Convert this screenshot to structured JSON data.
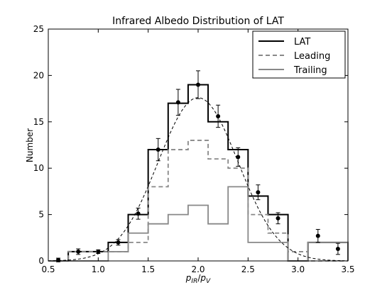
{
  "chart_data": {
    "type": "step-histogram",
    "title": "Infrared Albedo Distribution of LAT",
    "xlabel": "p_IR/p_V",
    "ylabel": "Number",
    "xlim": [
      0.5,
      3.5
    ],
    "ylim": [
      0,
      25
    ],
    "xticks": [
      0.5,
      1.0,
      1.5,
      2.0,
      2.5,
      3.0,
      3.5
    ],
    "xtick_labels": [
      "0.5",
      "1.0",
      "1.5",
      "2.0",
      "2.5",
      "3.0",
      "3.5"
    ],
    "yticks": [
      0,
      5,
      10,
      15,
      20,
      25
    ],
    "ytick_labels": [
      "0",
      "5",
      "10",
      "15",
      "20",
      "25"
    ],
    "grid": false,
    "legend_position": "top-right",
    "bin_edges": [
      0.5,
      0.7,
      0.9,
      1.1,
      1.3,
      1.5,
      1.7,
      1.9,
      2.1,
      2.3,
      2.5,
      2.7,
      2.9,
      3.1,
      3.3,
      3.5
    ],
    "series": [
      {
        "name": "LAT",
        "style": "solid",
        "color": "#000000",
        "values": [
          0,
          1,
          1,
          2,
          5,
          12,
          17,
          19,
          15,
          12,
          7,
          5,
          0,
          2,
          2
        ]
      },
      {
        "name": "Leading",
        "style": "dashed",
        "color": "#888888",
        "values": [
          0,
          1,
          1,
          1,
          2,
          8,
          12,
          13,
          11,
          10,
          5,
          3,
          1,
          0,
          0
        ]
      },
      {
        "name": "Trailing",
        "style": "solid",
        "color": "#888888",
        "values": [
          0,
          0,
          0,
          1,
          3,
          4,
          5,
          6,
          4,
          8,
          2,
          2,
          0,
          2,
          2
        ]
      }
    ],
    "points": {
      "x": [
        0.6,
        0.8,
        1.0,
        1.2,
        1.4,
        1.6,
        1.8,
        2.0,
        2.2,
        2.4,
        2.6,
        2.8,
        3.2,
        3.4
      ],
      "y": [
        0.1,
        1.0,
        1.0,
        2.0,
        5.1,
        12.0,
        17.1,
        19.0,
        15.6,
        11.2,
        7.4,
        4.6,
        2.7,
        1.3
      ],
      "err": [
        0.2,
        0.3,
        0.2,
        0.3,
        0.6,
        1.2,
        1.4,
        1.5,
        1.2,
        1.0,
        0.8,
        0.6,
        0.7,
        0.6
      ]
    },
    "fit": {
      "style": "dashed",
      "color": "#000000",
      "mean": 2.0,
      "sigma": 0.4,
      "amplitude": 17.6
    }
  }
}
